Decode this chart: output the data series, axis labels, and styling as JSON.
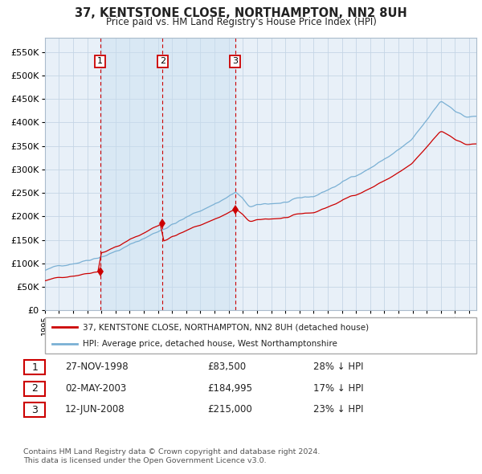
{
  "title": "37, KENTSTONE CLOSE, NORTHAMPTON, NN2 8UH",
  "subtitle": "Price paid vs. HM Land Registry's House Price Index (HPI)",
  "legend_line1": "37, KENTSTONE CLOSE, NORTHAMPTON, NN2 8UH (detached house)",
  "legend_line2": "HPI: Average price, detached house, West Northamptonshire",
  "footer1": "Contains HM Land Registry data © Crown copyright and database right 2024.",
  "footer2": "This data is licensed under the Open Government Licence v3.0.",
  "sale_color": "#cc0000",
  "hpi_color": "#7ab0d4",
  "background_color": "#e8f0f8",
  "grid_color": "#c5d5e5",
  "sale_points": [
    {
      "label": "1",
      "date": "27-NOV-1998",
      "price": 83500,
      "price_str": "£83,500",
      "pct": "28% ↓ HPI",
      "x_year": 1998.91
    },
    {
      "label": "2",
      "date": "02-MAY-2003",
      "price": 184995,
      "price_str": "£184,995",
      "pct": "17% ↓ HPI",
      "x_year": 2003.33
    },
    {
      "label": "3",
      "date": "12-JUN-2008",
      "price": 215000,
      "price_str": "£215,000",
      "pct": "23% ↓ HPI",
      "x_year": 2008.45
    }
  ],
  "vline_color": "#cc0000",
  "ylim": [
    0,
    580000
  ],
  "xlim_start": 1995.0,
  "xlim_end": 2025.5,
  "yticks": [
    0,
    50000,
    100000,
    150000,
    200000,
    250000,
    300000,
    350000,
    400000,
    450000,
    500000,
    550000
  ],
  "xticks": [
    1995,
    1996,
    1997,
    1998,
    1999,
    2000,
    2001,
    2002,
    2003,
    2004,
    2005,
    2006,
    2007,
    2008,
    2009,
    2010,
    2011,
    2012,
    2013,
    2014,
    2015,
    2016,
    2017,
    2018,
    2019,
    2020,
    2021,
    2022,
    2023,
    2024,
    2025
  ]
}
